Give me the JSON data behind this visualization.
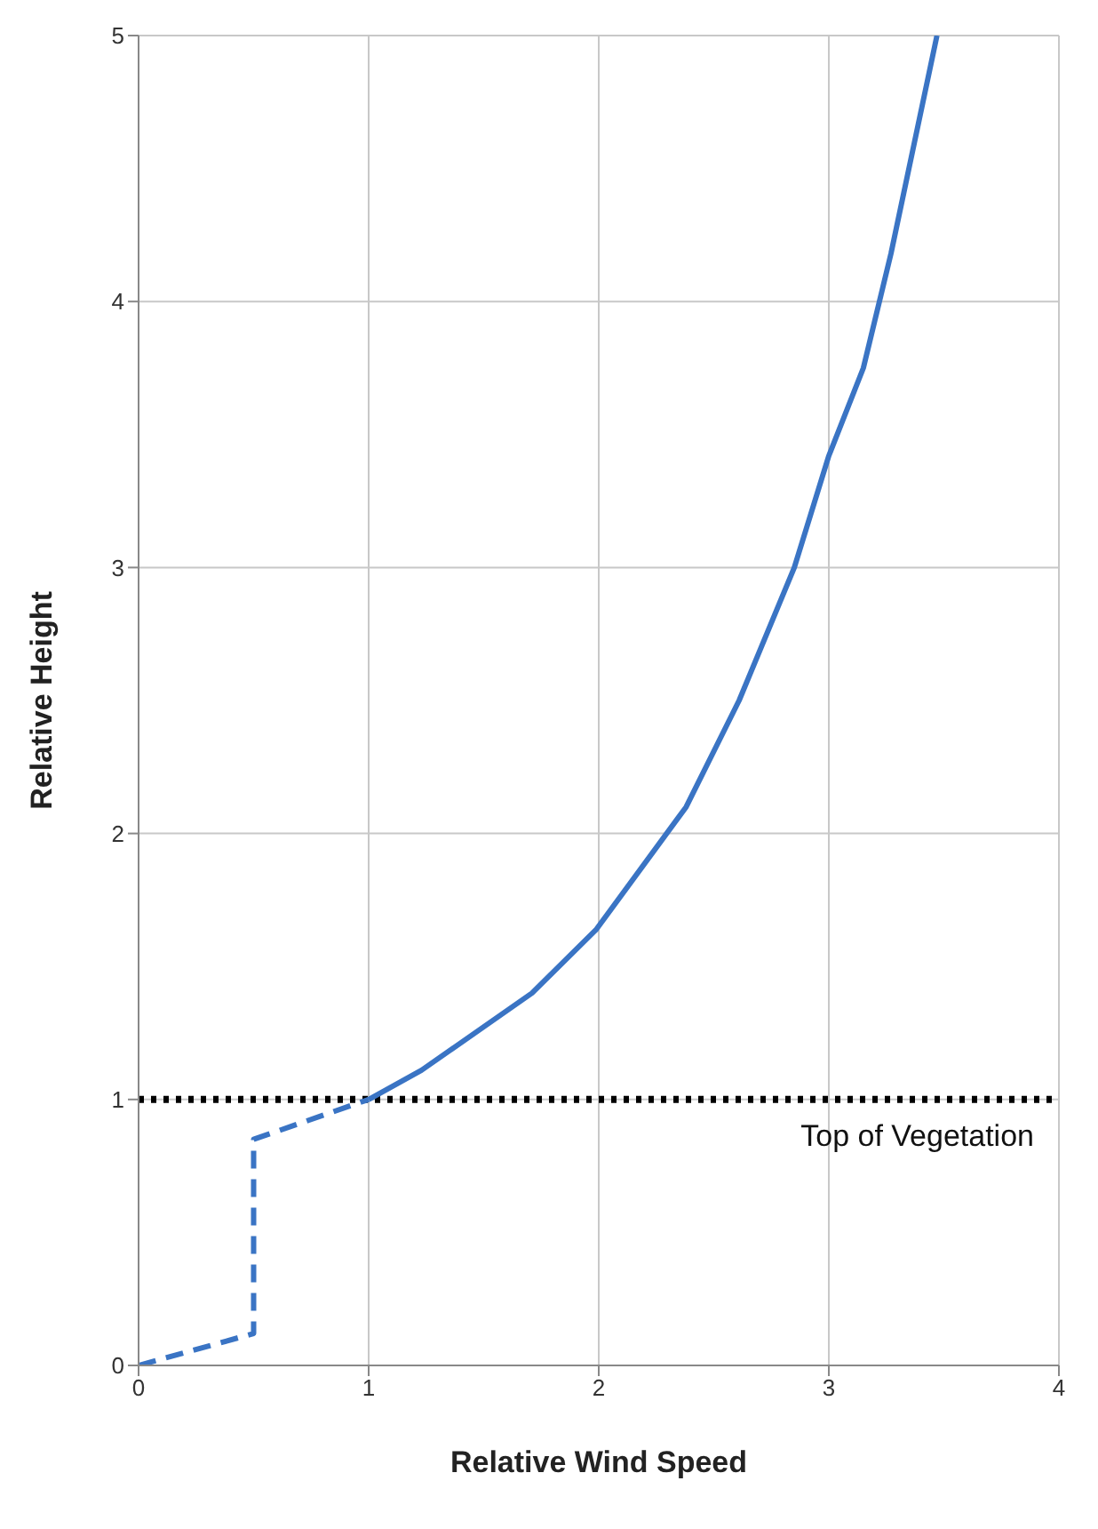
{
  "chart_data": {
    "type": "line",
    "xlabel": "Relative Wind Speed",
    "ylabel": "Relative Height",
    "xlim": [
      0,
      4
    ],
    "ylim": [
      0,
      5
    ],
    "xticks": [
      0,
      1,
      2,
      3,
      4
    ],
    "yticks": [
      0,
      1,
      2,
      3,
      4,
      5
    ],
    "grid": true,
    "marker": "none",
    "series": [
      {
        "color": "#3a74c4",
        "line_style": "dashed",
        "x": [
          0,
          0.5,
          0.5,
          1
        ],
        "values": [
          0,
          0.12,
          0.85,
          1
        ]
      },
      {
        "color": "#3a74c4",
        "line_style": "solid",
        "x": [
          1,
          1.23,
          1.71,
          1.99,
          2.38,
          2.61,
          2.85,
          3.0,
          3.15,
          3.27,
          3.47
        ],
        "values": [
          1,
          1.11,
          1.4,
          1.64,
          2.1,
          2.5,
          3.0,
          3.42,
          3.75,
          4.18,
          5
        ]
      }
    ],
    "ref_lines": [
      {
        "axis": "y",
        "value": 1,
        "label": "Top of Vegetation",
        "color": "#000000",
        "line_style": "dotted"
      }
    ]
  }
}
